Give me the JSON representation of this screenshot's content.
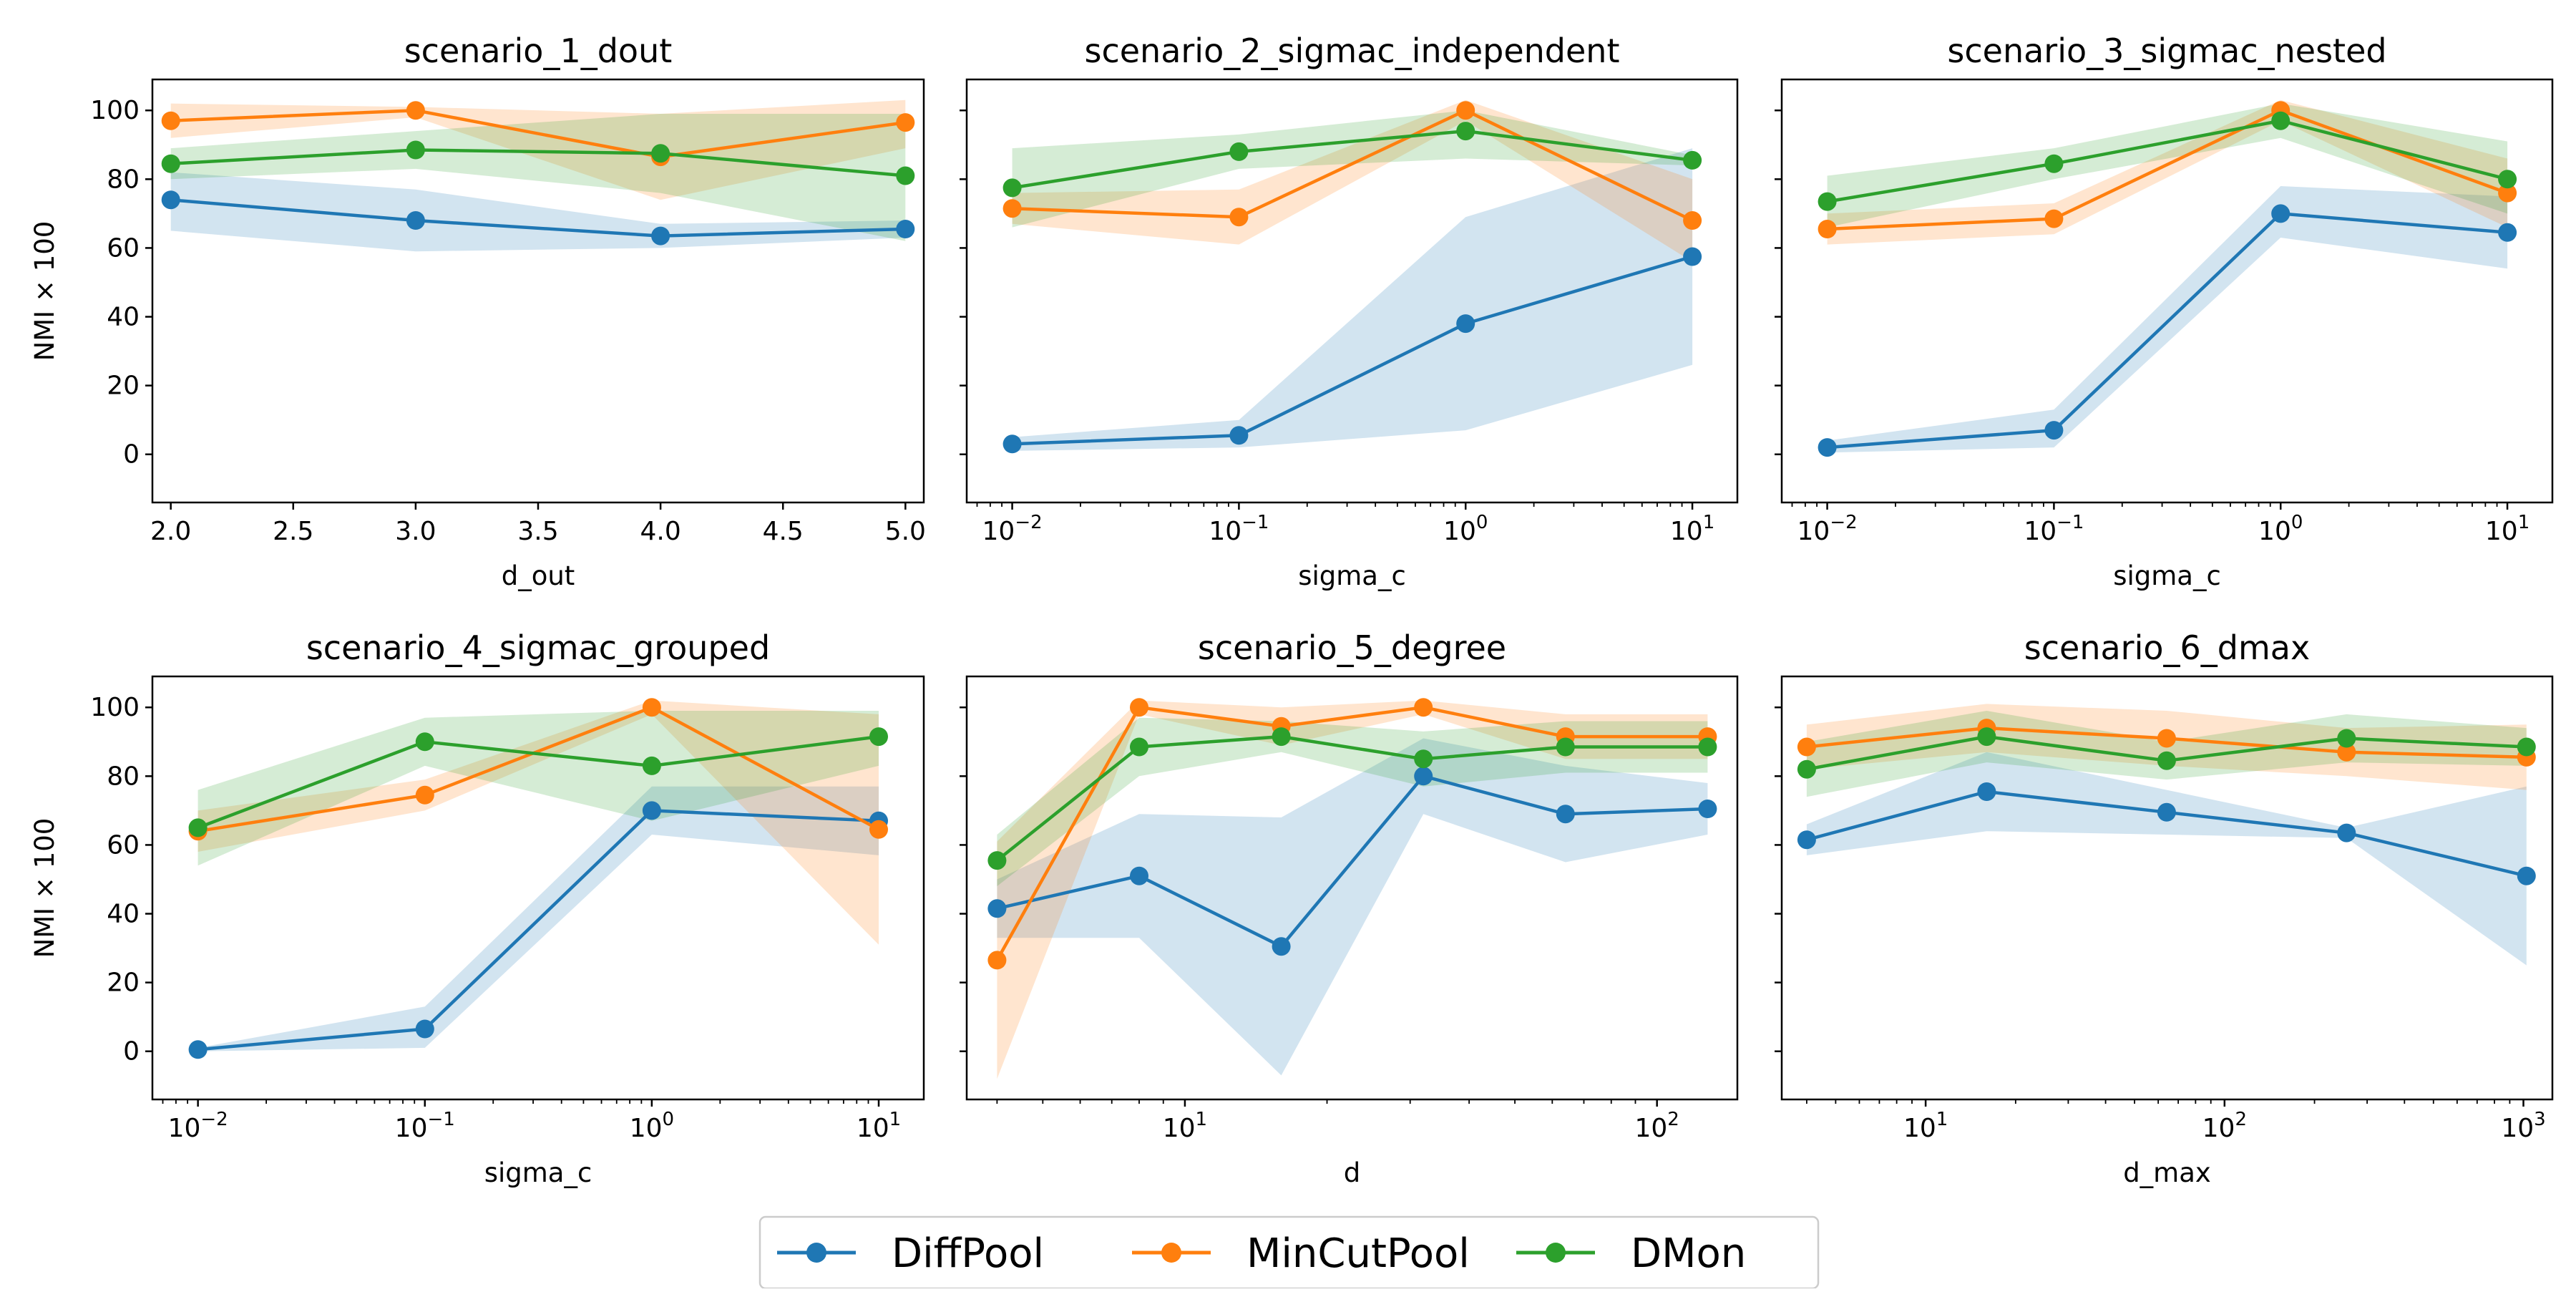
{
  "legend": {
    "placement": "bottom-center",
    "entries": [
      {
        "name": "DiffPool",
        "color": "#1f77b4"
      },
      {
        "name": "MinCutPool",
        "color": "#ff7f0e"
      },
      {
        "name": "DMon",
        "color": "#2ca02c"
      }
    ]
  },
  "shared_ylabel": "NMI × 100",
  "chart_data": [
    {
      "type": "line",
      "title": "scenario_1_dout",
      "xlabel": "d_out",
      "ylabel": "NMI × 100",
      "xscale": "linear",
      "xlim": [
        1.925,
        5.075
      ],
      "ylim": [
        -14,
        109
      ],
      "xticks": [
        2.0,
        2.5,
        3.0,
        3.5,
        4.0,
        4.5,
        5.0
      ],
      "xtick_labels": [
        "2.0",
        "2.5",
        "3.0",
        "3.5",
        "4.0",
        "4.5",
        "5.0"
      ],
      "yticks": [
        0,
        20,
        40,
        60,
        80,
        100
      ],
      "ytick_labels": [
        "0",
        "20",
        "40",
        "60",
        "80",
        "100"
      ],
      "x": [
        2,
        3,
        4,
        5
      ],
      "series": [
        {
          "name": "DiffPool",
          "values": [
            74,
            68,
            63.5,
            65.5
          ],
          "lower": [
            65,
            59,
            60,
            63
          ],
          "upper": [
            82,
            77,
            67,
            68
          ]
        },
        {
          "name": "MinCutPool",
          "values": [
            97,
            100,
            86.5,
            96.5
          ],
          "lower": [
            92,
            98,
            74,
            89
          ],
          "upper": [
            102,
            101,
            99,
            103
          ]
        },
        {
          "name": "DMon",
          "values": [
            84.5,
            88.5,
            87.5,
            81
          ],
          "lower": [
            80,
            83,
            76,
            62
          ],
          "upper": [
            89,
            94,
            99,
            99
          ]
        }
      ]
    },
    {
      "type": "line",
      "title": "scenario_2_sigmac_independent",
      "xlabel": "sigma_c",
      "ylabel": "",
      "xscale": "log",
      "xlim": [
        0.0063,
        15.8
      ],
      "ylim": [
        -14,
        109
      ],
      "xticks": [
        0.01,
        0.1,
        1,
        10
      ],
      "xtick_labels": [
        "10^-2",
        "10^-1",
        "10^0",
        "10^1"
      ],
      "yticks": [
        0,
        20,
        40,
        60,
        80,
        100
      ],
      "ytick_labels": [
        "",
        "",
        "",
        "",
        "",
        ""
      ],
      "x": [
        0.01,
        0.1,
        1,
        10
      ],
      "series": [
        {
          "name": "DiffPool",
          "values": [
            3,
            5.5,
            38,
            57.5
          ],
          "lower": [
            1,
            2,
            7,
            26
          ],
          "upper": [
            5,
            10,
            69,
            89
          ]
        },
        {
          "name": "MinCutPool",
          "values": [
            71.5,
            69,
            100,
            68
          ],
          "lower": [
            67,
            61,
            97,
            56
          ],
          "upper": [
            76,
            77,
            103,
            80
          ]
        },
        {
          "name": "DMon",
          "values": [
            77.5,
            88,
            94,
            85.5
          ],
          "lower": [
            66,
            83,
            86,
            84
          ],
          "upper": [
            89,
            93,
            100,
            87
          ]
        }
      ]
    },
    {
      "type": "line",
      "title": "scenario_3_sigmac_nested",
      "xlabel": "sigma_c",
      "ylabel": "",
      "xscale": "log",
      "xlim": [
        0.0063,
        15.8
      ],
      "ylim": [
        -14,
        109
      ],
      "xticks": [
        0.01,
        0.1,
        1,
        10
      ],
      "xtick_labels": [
        "10^-2",
        "10^-1",
        "10^0",
        "10^1"
      ],
      "yticks": [
        0,
        20,
        40,
        60,
        80,
        100
      ],
      "ytick_labels": [
        "",
        "",
        "",
        "",
        "",
        ""
      ],
      "x": [
        0.01,
        0.1,
        1,
        10
      ],
      "series": [
        {
          "name": "DiffPool",
          "values": [
            2,
            7,
            70,
            64.5
          ],
          "lower": [
            0.5,
            2,
            63,
            54
          ],
          "upper": [
            4,
            13,
            78,
            75
          ]
        },
        {
          "name": "MinCutPool",
          "values": [
            65.5,
            68.5,
            100,
            76
          ],
          "lower": [
            61,
            64,
            97,
            66
          ],
          "upper": [
            70,
            73,
            103,
            86
          ]
        },
        {
          "name": "DMon",
          "values": [
            73.5,
            84.5,
            97,
            80
          ],
          "lower": [
            66,
            80,
            92,
            70
          ],
          "upper": [
            81,
            89,
            102,
            91
          ]
        }
      ]
    },
    {
      "type": "line",
      "title": "scenario_4_sigmac_grouped",
      "xlabel": "sigma_c",
      "ylabel": "NMI × 100",
      "xscale": "log",
      "xlim": [
        0.0063,
        15.8
      ],
      "ylim": [
        -14,
        109
      ],
      "xticks": [
        0.01,
        0.1,
        1,
        10
      ],
      "xtick_labels": [
        "10^-2",
        "10^-1",
        "10^0",
        "10^1"
      ],
      "yticks": [
        0,
        20,
        40,
        60,
        80,
        100
      ],
      "ytick_labels": [
        "0",
        "20",
        "40",
        "60",
        "80",
        "100"
      ],
      "x": [
        0.01,
        0.1,
        1,
        10
      ],
      "series": [
        {
          "name": "DiffPool",
          "values": [
            0.5,
            6.5,
            70,
            67
          ],
          "lower": [
            0,
            1,
            63,
            57
          ],
          "upper": [
            1,
            13,
            77,
            77
          ]
        },
        {
          "name": "MinCutPool",
          "values": [
            64,
            74.5,
            100,
            64.5
          ],
          "lower": [
            58,
            70,
            98,
            31
          ],
          "upper": [
            70,
            79,
            102,
            98
          ]
        },
        {
          "name": "DMon",
          "values": [
            65,
            90,
            83,
            91.5
          ],
          "lower": [
            54,
            83,
            67,
            83
          ],
          "upper": [
            76,
            97,
            99,
            99
          ]
        }
      ]
    },
    {
      "type": "line",
      "title": "scenario_5_degree",
      "xlabel": "d",
      "ylabel": "",
      "xscale": "log",
      "xlim": [
        3.45,
        148
      ],
      "ylim": [
        -14,
        109
      ],
      "xticks": [
        10,
        100
      ],
      "xtick_labels": [
        "10^1",
        "10^2"
      ],
      "yticks": [
        0,
        20,
        40,
        60,
        80,
        100
      ],
      "ytick_labels": [
        "",
        "",
        "",
        "",
        "",
        ""
      ],
      "x": [
        4,
        8,
        16,
        32,
        64,
        128
      ],
      "series": [
        {
          "name": "DiffPool",
          "values": [
            41.5,
            51,
            30.5,
            80,
            69,
            70.5
          ],
          "lower": [
            33,
            33,
            -7,
            69,
            55,
            63
          ],
          "upper": [
            50,
            69,
            68,
            91,
            83,
            78
          ]
        },
        {
          "name": "MinCutPool",
          "values": [
            26.5,
            100,
            94.5,
            100,
            91.5,
            91.5
          ],
          "lower": [
            -8,
            98,
            89,
            98,
            85,
            85
          ],
          "upper": [
            61,
            102,
            100,
            102,
            98,
            98
          ]
        },
        {
          "name": "DMon",
          "values": [
            55.5,
            88.5,
            91.5,
            85,
            88.5,
            88.5
          ],
          "lower": [
            48,
            80,
            87,
            77,
            81,
            81
          ],
          "upper": [
            63,
            97,
            96,
            93,
            96,
            96
          ]
        }
      ]
    },
    {
      "type": "line",
      "title": "scenario_6_dmax",
      "xlabel": "d_max",
      "ylabel": "",
      "xscale": "log",
      "xlim": [
        3.3,
        1250
      ],
      "ylim": [
        -14,
        109
      ],
      "xticks": [
        10,
        100,
        1000
      ],
      "xtick_labels": [
        "10^1",
        "10^2",
        "10^3"
      ],
      "yticks": [
        0,
        20,
        40,
        60,
        80,
        100
      ],
      "ytick_labels": [
        "",
        "",
        "",
        "",
        "",
        ""
      ],
      "x": [
        4,
        16,
        64,
        256,
        1024
      ],
      "series": [
        {
          "name": "DiffPool",
          "values": [
            61.5,
            75.5,
            69.5,
            63.5,
            51
          ],
          "lower": [
            57,
            64,
            63,
            62,
            25
          ],
          "upper": [
            66,
            87,
            76,
            65,
            77
          ]
        },
        {
          "name": "MinCutPool",
          "values": [
            88.5,
            94,
            91,
            87,
            85.5
          ],
          "lower": [
            82,
            87,
            83,
            80,
            76
          ],
          "upper": [
            95,
            101,
            99,
            94,
            95
          ]
        },
        {
          "name": "DMon",
          "values": [
            82,
            91.5,
            84.5,
            91,
            88.5
          ],
          "lower": [
            74,
            84,
            79,
            84,
            83
          ],
          "upper": [
            90,
            99,
            90,
            98,
            94
          ]
        }
      ]
    }
  ]
}
